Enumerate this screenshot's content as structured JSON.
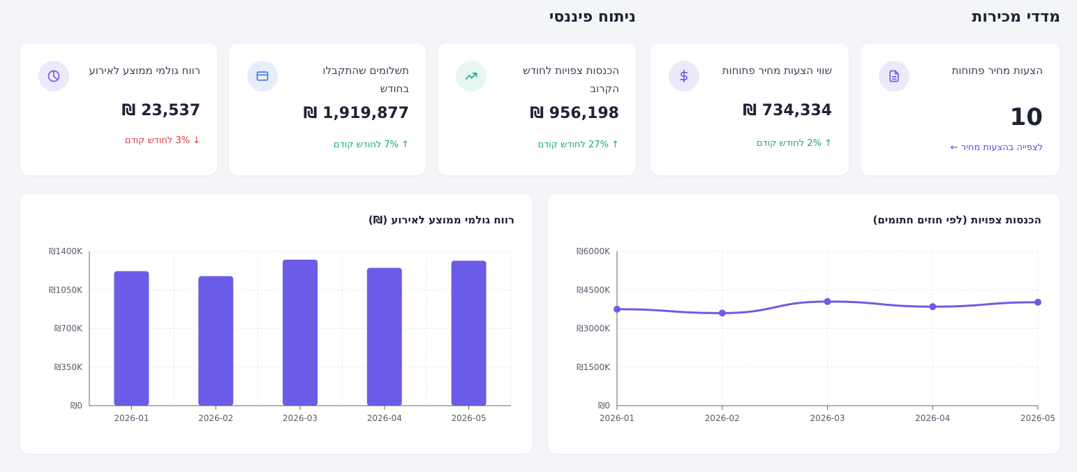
{
  "sections": {
    "sales": "מדדי מכירות",
    "finance": "ניתוח פיננסי"
  },
  "kpis": [
    {
      "label": "הצעות מחיר פתוחות",
      "value": "10",
      "delta": "לצפייה בהצעות מחיר ←",
      "icon": "document-icon",
      "trend": "link"
    },
    {
      "label": "שווי הצעות מחיר פתוחות",
      "value": "₪ 734,334",
      "delta": "2% לחודש קודם",
      "icon": "dollar-icon",
      "trend": "up"
    },
    {
      "label": "הכנסות צפויות לחודש הקרוב",
      "value": "₪ 956,198",
      "delta": "27% לחודש קודם",
      "icon": "trending-up-icon",
      "trend": "up"
    },
    {
      "label": "תשלומים שהתקבלו בחודש",
      "value": "₪ 1,919,877",
      "delta": "7% לחודש קודם",
      "icon": "credit-card-icon",
      "trend": "up"
    },
    {
      "label": "רווח גולמי ממוצע לאירוע",
      "value": "₪ 23,537",
      "delta": "3% לחודש קודם",
      "icon": "pie-chart-icon",
      "trend": "down"
    }
  ],
  "colors": {
    "accent": "#6b5ce7",
    "up": "#1ba784",
    "down": "#dc3c3c"
  },
  "chart_data": [
    {
      "type": "line",
      "title": "הכנסות צפויות (לפי חוזים חתומים)",
      "x": [
        "2026-01",
        "2026-02",
        "2026-03",
        "2026-04",
        "2026-05"
      ],
      "series": [
        {
          "values": [
            3750,
            3600,
            4050,
            3850,
            4020
          ]
        }
      ],
      "ylim": [
        0,
        6000
      ],
      "yticks": [
        0,
        1500,
        3000,
        4500,
        6000
      ],
      "ytick_labels": [
        "₪0",
        "₪1500K",
        "₪3000K",
        "₪4500K",
        "₪6000K"
      ],
      "grid": true,
      "legend": "none"
    },
    {
      "type": "bar",
      "title": "רווח גולמי ממוצע לאירוע (₪)",
      "categories": [
        "2026-01",
        "2026-02",
        "2026-03",
        "2026-04",
        "2026-05"
      ],
      "values": [
        1220,
        1175,
        1325,
        1250,
        1315
      ],
      "ylim": [
        0,
        1400
      ],
      "yticks": [
        0,
        350,
        700,
        1050,
        1400
      ],
      "ytick_labels": [
        "₪0",
        "₪350K",
        "₪700K",
        "₪1050K",
        "₪1400K"
      ],
      "grid": true,
      "legend": "none"
    }
  ]
}
